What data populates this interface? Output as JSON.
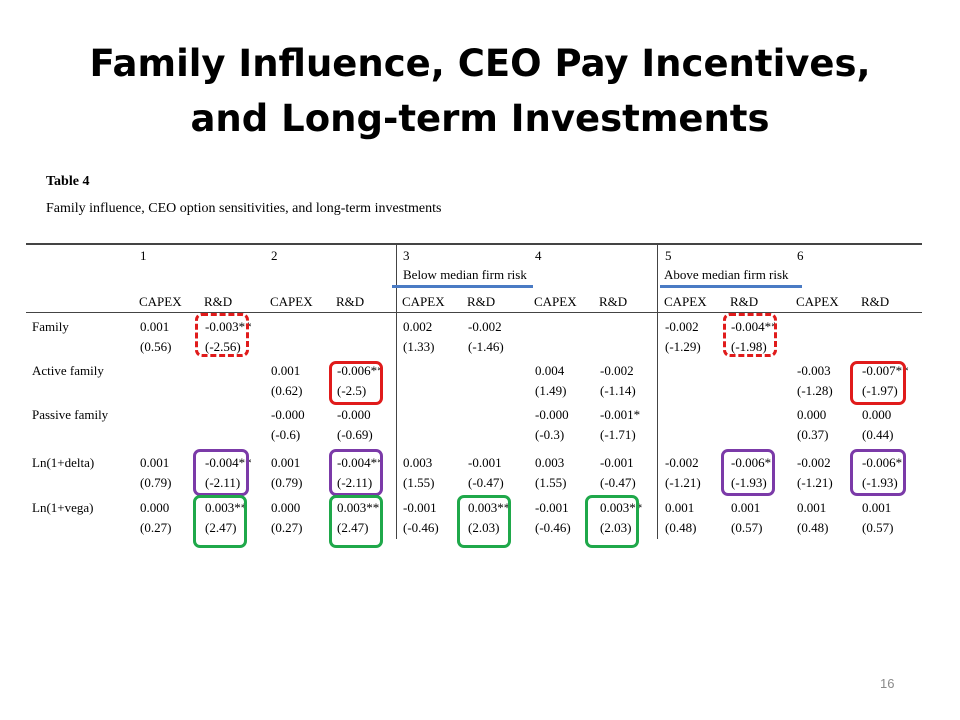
{
  "title": {
    "line1": "Family Influence, CEO Pay Incentives,",
    "line2": "and Long-term Investments"
  },
  "table": {
    "label": "Table 4",
    "caption": "Family influence, CEO option sensitivities, and long-term investments",
    "model_numbers": [
      "1",
      "2",
      "3",
      "4",
      "5",
      "6"
    ],
    "group_headers": [
      "Below median firm risk",
      "Above median firm risk"
    ],
    "column_headers": [
      "CAPEX",
      "R&D",
      "CAPEX",
      "R&D",
      "CAPEX",
      "R&D",
      "CAPEX",
      "R&D",
      "CAPEX",
      "R&D",
      "CAPEX",
      "R&D"
    ],
    "rows": [
      {
        "label": "Family",
        "coef": [
          "0.001",
          "-0.003**",
          "",
          "",
          "0.002",
          "-0.002",
          "",
          "",
          "-0.002",
          "-0.004**",
          "",
          ""
        ],
        "t": [
          "(0.56)",
          "(-2.56)",
          "",
          "",
          "(1.33)",
          "(-1.46)",
          "",
          "",
          "(-1.29)",
          "(-1.98)",
          "",
          ""
        ]
      },
      {
        "label": "Active family",
        "coef": [
          "",
          "",
          "0.001",
          "-0.006**",
          "",
          "",
          "0.004",
          "-0.002",
          "",
          "",
          "-0.003",
          "-0.007**"
        ],
        "t": [
          "",
          "",
          "(0.62)",
          "(-2.5)",
          "",
          "",
          "(1.49)",
          "(-1.14)",
          "",
          "",
          "(-1.28)",
          "(-1.97)"
        ]
      },
      {
        "label": "Passive family",
        "coef": [
          "",
          "",
          "-0.000",
          "-0.000",
          "",
          "",
          "-0.000",
          "-0.001*",
          "",
          "",
          "0.000",
          "0.000"
        ],
        "t": [
          "",
          "",
          "(-0.6)",
          "(-0.69)",
          "",
          "",
          "(-0.3)",
          "(-1.71)",
          "",
          "",
          "(0.37)",
          "(0.44)"
        ]
      },
      {
        "label": "Ln(1+delta)",
        "coef": [
          "0.001",
          "-0.004**",
          "0.001",
          "-0.004**",
          "0.003",
          "-0.001",
          "0.003",
          "-0.001",
          "-0.002",
          "-0.006*",
          "-0.002",
          "-0.006*"
        ],
        "t": [
          "(0.79)",
          "(-2.11)",
          "(0.79)",
          "(-2.11)",
          "(1.55)",
          "(-0.47)",
          "(1.55)",
          "(-0.47)",
          "(-1.21)",
          "(-1.93)",
          "(-1.21)",
          "(-1.93)"
        ]
      },
      {
        "label": "Ln(1+vega)",
        "coef": [
          "0.000",
          "0.003**",
          "0.000",
          "0.003**",
          "-0.001",
          "0.003**",
          "-0.001",
          "0.003**",
          "0.001",
          "0.001",
          "0.001",
          "0.001"
        ],
        "t": [
          "(0.27)",
          "(2.47)",
          "(0.27)",
          "(2.47)",
          "(-0.46)",
          "(2.03)",
          "(-0.46)",
          "(2.03)",
          "(0.48)",
          "(0.57)",
          "(0.48)",
          "(0.57)"
        ]
      }
    ]
  },
  "highlight_colors": {
    "red": "#e01b1b",
    "purple": "#7b3aa8",
    "green": "#1fa84a",
    "blue_underline": "#4a7bc4"
  },
  "page_number": "16"
}
